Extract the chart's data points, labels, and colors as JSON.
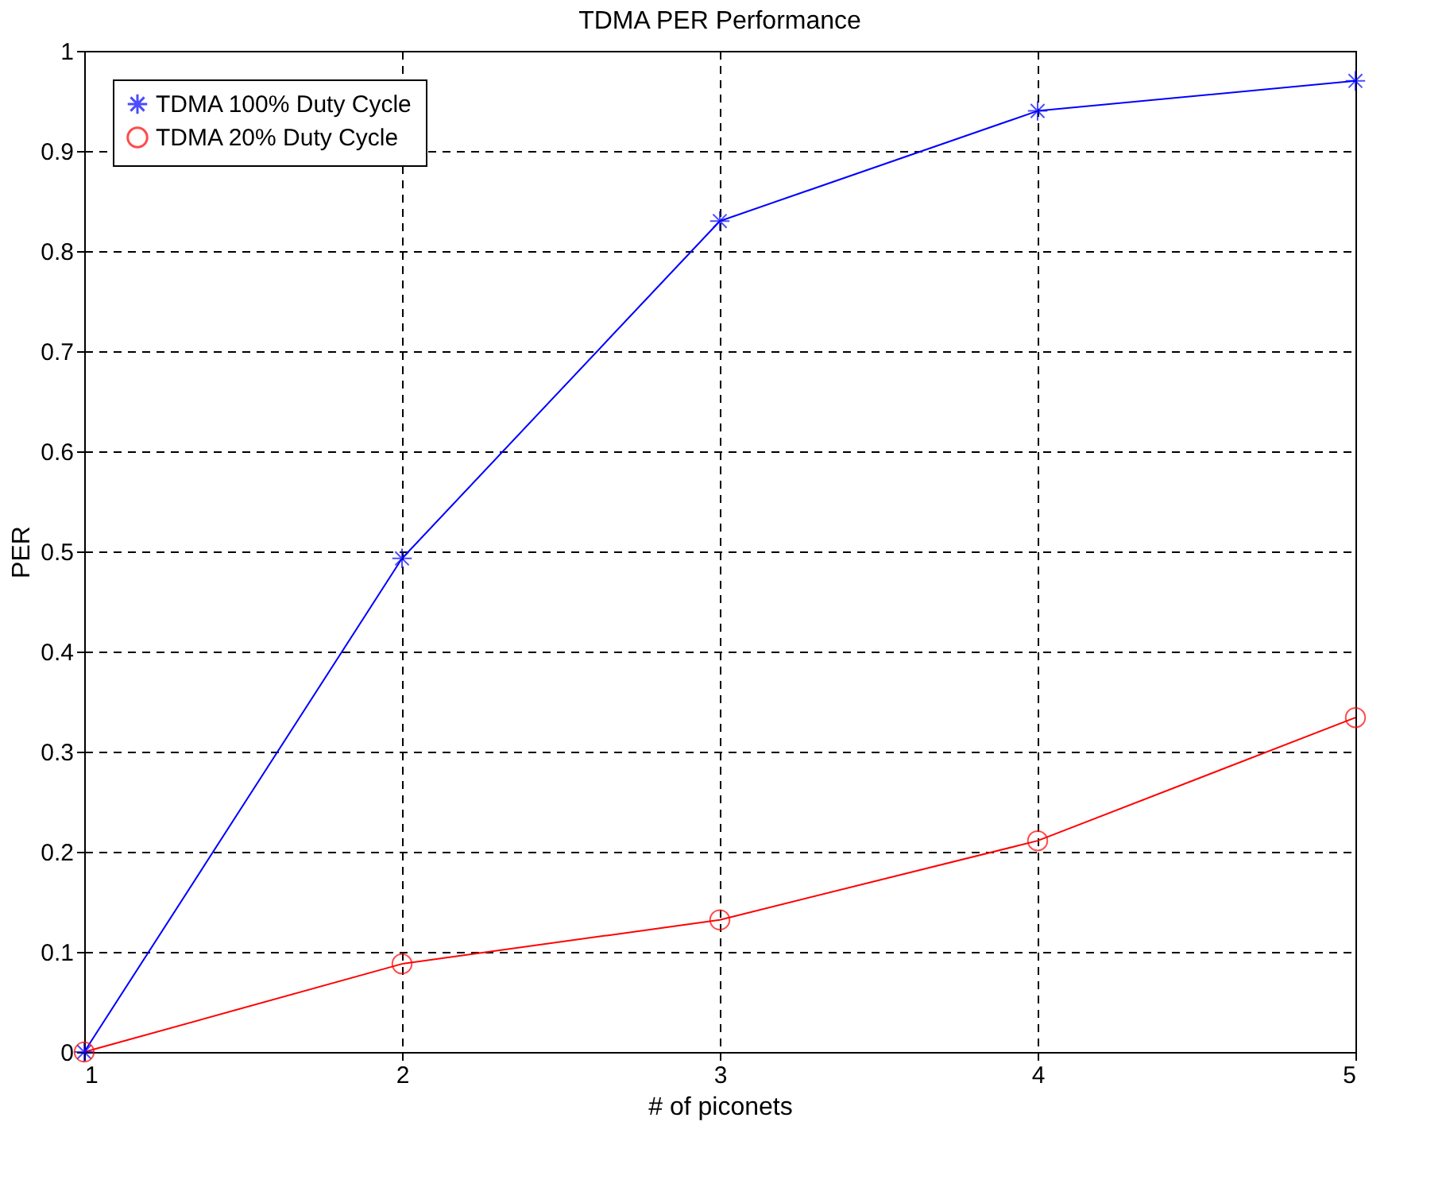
{
  "chart_data": {
    "type": "line",
    "title": "TDMA PER Performance",
    "xlabel": "# of piconets",
    "ylabel": "PER",
    "x": [
      1,
      2,
      3,
      4,
      5
    ],
    "series": [
      {
        "name": "TDMA 100% Duty Cycle",
        "color": "#0000ff",
        "marker": "cross",
        "values": [
          0,
          0.493,
          0.83,
          0.94,
          0.97
        ]
      },
      {
        "name": "TDMA 20% Duty Cycle",
        "color": "#ff0000",
        "marker": "circle",
        "values": [
          0,
          0.088,
          0.132,
          0.211,
          0.334
        ]
      }
    ],
    "xlim": [
      1,
      5
    ],
    "xticks": [
      1,
      2,
      3,
      4,
      5
    ],
    "ylim": [
      0,
      1
    ],
    "yticks": [
      0,
      0.1,
      0.2,
      0.3,
      0.4,
      0.5,
      0.6,
      0.7,
      0.8,
      0.9,
      1
    ],
    "grid": true,
    "legend": "top left",
    "line_style": "solid"
  }
}
